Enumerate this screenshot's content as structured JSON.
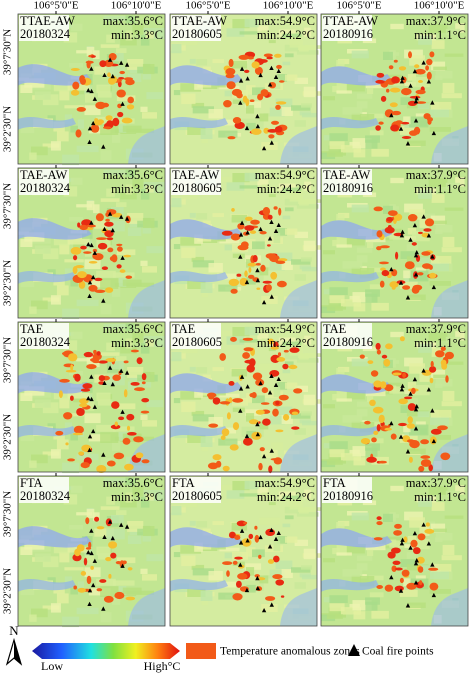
{
  "axes": {
    "top_labels": [
      "106°5'0\"E",
      "106°10'0\"E"
    ],
    "left_labels": [
      "39°7'30\"N",
      "39°2'30\"N"
    ]
  },
  "panels": [
    {
      "method": "TTAE-AW",
      "date": "20180324",
      "max": "max:35.6°C",
      "min": "min:3.3°C"
    },
    {
      "method": "TTAE-AW",
      "date": "20180605",
      "max": "max:54.9°C",
      "min": "min:24.2°C"
    },
    {
      "method": "TTAE-AW",
      "date": "20180916",
      "max": "max:37.9°C",
      "min": "min:1.1°C"
    },
    {
      "method": "TAE-AW",
      "date": "20180324",
      "max": "max:35.6°C",
      "min": "min:3.3°C"
    },
    {
      "method": "TAE-AW",
      "date": "20180605",
      "max": "max:54.9°C",
      "min": "min:24.2°C"
    },
    {
      "method": "TAE-AW",
      "date": "20180916",
      "max": "max:37.9°C",
      "min": "min:1.1°C"
    },
    {
      "method": "TAE",
      "date": "20180324",
      "max": "max:35.6°C",
      "min": "min:3.3°C"
    },
    {
      "method": "TAE",
      "date": "20180605",
      "max": "max:54.9°C",
      "min": "min:24.2°C"
    },
    {
      "method": "TAE",
      "date": "20180916",
      "max": "max:37.9°C",
      "min": "min:1.1°C"
    },
    {
      "method": "FTA",
      "date": "20180324",
      "max": "max:35.6°C",
      "min": "min:3.3°C"
    },
    {
      "method": "FTA",
      "date": "20180605",
      "max": "max:54.9°C",
      "min": "min:24.2°C"
    },
    {
      "method": "FTA",
      "date": "20180916",
      "max": "max:37.9°C",
      "min": "min:1.1°C"
    }
  ],
  "legend": {
    "north": "N",
    "low": "Low",
    "high": "High°C",
    "anomaly": "Temperature anomalous zones",
    "coal": "Coal fire points"
  }
}
